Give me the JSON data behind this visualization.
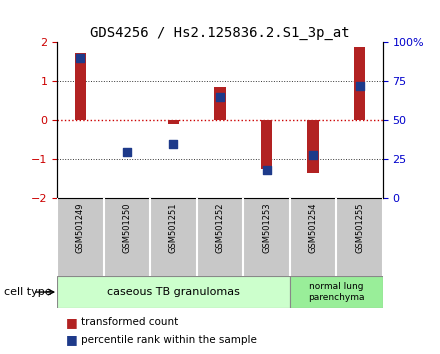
{
  "title": "GDS4256 / Hs2.125836.2.S1_3p_at",
  "samples": [
    "GSM501249",
    "GSM501250",
    "GSM501251",
    "GSM501252",
    "GSM501253",
    "GSM501254",
    "GSM501255"
  ],
  "transformed_count": [
    1.72,
    0.0,
    -0.1,
    0.85,
    -1.25,
    -1.35,
    1.88
  ],
  "percentile_rank": [
    0.9,
    0.3,
    0.35,
    0.65,
    0.18,
    0.28,
    0.72
  ],
  "ylim": [
    -2,
    2
  ],
  "yticks_left": [
    -2,
    -1,
    0,
    1,
    2
  ],
  "yticks_right": [
    0,
    25,
    50,
    75,
    100
  ],
  "bar_color": "#B22222",
  "square_color": "#1E3A8A",
  "zero_line_color": "#CC0000",
  "grid_line_color": "#333333",
  "group1_samples": [
    0,
    1,
    2,
    3,
    4
  ],
  "group2_samples": [
    5,
    6
  ],
  "group1_label": "caseous TB granulomas",
  "group2_label": "normal lung\nparenchyma",
  "group1_color": "#CCFFCC",
  "group2_color": "#99EE99",
  "cell_type_label": "cell type",
  "legend1_label": "transformed count",
  "legend2_label": "percentile rank within the sample",
  "bar_width": 0.25,
  "square_size": 30,
  "background_color": "#FFFFFF",
  "xlabels_bg": "#C8C8C8",
  "tick_label_color_left": "#CC0000",
  "tick_label_color_right": "#0000CC"
}
